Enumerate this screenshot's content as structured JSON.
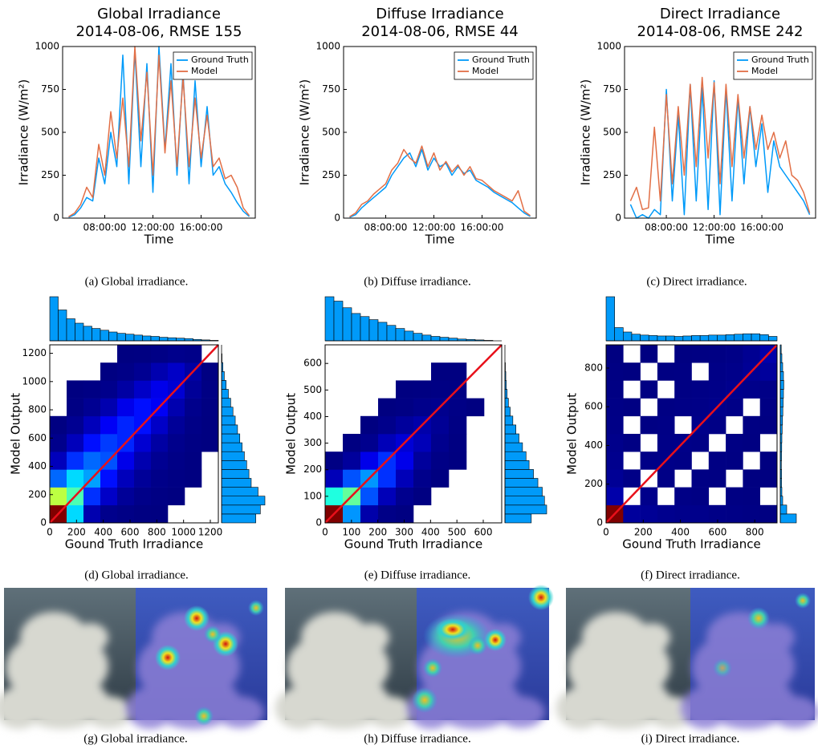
{
  "chart_data": [
    {
      "type": "line",
      "title": "Global Irradiance",
      "subtitle": "2014-08-06, RMSE 155",
      "xlabel": "Time",
      "ylabel": "Irradiance (W/m²)",
      "x": [
        5,
        5.5,
        6,
        6.5,
        7,
        7.5,
        8,
        8.5,
        9,
        9.5,
        10,
        10.5,
        11,
        11.5,
        12,
        12.5,
        13,
        13.5,
        14,
        14.5,
        15,
        15.5,
        16,
        16.5,
        17,
        17.5,
        18,
        18.5,
        19,
        19.5,
        20
      ],
      "series": [
        {
          "name": "Ground Truth",
          "color": "#009af9",
          "values": [
            5,
            20,
            60,
            120,
            100,
            350,
            200,
            500,
            300,
            950,
            200,
            980,
            300,
            900,
            150,
            1000,
            400,
            900,
            250,
            850,
            200,
            800,
            300,
            650,
            250,
            300,
            200,
            150,
            90,
            40,
            10
          ]
        },
        {
          "name": "Model",
          "color": "#e26f46",
          "values": [
            8,
            30,
            80,
            180,
            120,
            430,
            250,
            620,
            350,
            700,
            300,
            1000,
            450,
            850,
            250,
            950,
            380,
            800,
            300,
            820,
            300,
            700,
            350,
            600,
            300,
            350,
            230,
            250,
            180,
            60,
            15
          ]
        }
      ],
      "xlim": [
        4.5,
        20.5
      ],
      "xticks": [
        {
          "value": 8,
          "label": "08:00:00"
        },
        {
          "value": 12,
          "label": "12:00:00"
        },
        {
          "value": 16,
          "label": "16:00:00"
        }
      ],
      "ylim": [
        0,
        1000
      ],
      "yticks": [
        0,
        250,
        500,
        750,
        1000
      ],
      "legend": "upper right",
      "caption": "(a) Global irradiance."
    },
    {
      "type": "line",
      "title": "Diffuse Irradiance",
      "subtitle": "2014-08-06, RMSE 44",
      "xlabel": "Time",
      "ylabel": "Irradiance (W/m²)",
      "x": [
        5,
        5.5,
        6,
        6.5,
        7,
        7.5,
        8,
        8.5,
        9,
        9.5,
        10,
        10.5,
        11,
        11.5,
        12,
        12.5,
        13,
        13.5,
        14,
        14.5,
        15,
        15.5,
        16,
        16.5,
        17,
        17.5,
        18,
        18.5,
        19,
        19.5,
        20
      ],
      "series": [
        {
          "name": "Ground Truth",
          "color": "#009af9",
          "values": [
            5,
            20,
            60,
            90,
            120,
            150,
            180,
            250,
            300,
            350,
            380,
            300,
            400,
            280,
            350,
            300,
            320,
            250,
            300,
            260,
            280,
            220,
            200,
            180,
            150,
            130,
            110,
            90,
            60,
            30,
            10
          ]
        },
        {
          "name": "Model",
          "color": "#e26f46",
          "values": [
            8,
            30,
            80,
            100,
            140,
            170,
            200,
            280,
            320,
            400,
            350,
            320,
            420,
            300,
            380,
            280,
            330,
            270,
            310,
            250,
            300,
            230,
            220,
            190,
            160,
            140,
            120,
            100,
            160,
            40,
            15
          ]
        }
      ],
      "xlim": [
        4.5,
        20.5
      ],
      "xticks": [
        {
          "value": 8,
          "label": "08:00:00"
        },
        {
          "value": 12,
          "label": "12:00:00"
        },
        {
          "value": 16,
          "label": "16:00:00"
        }
      ],
      "ylim": [
        0,
        1000
      ],
      "yticks": [
        0,
        250,
        500,
        750,
        1000
      ],
      "legend": "upper right",
      "caption": "(b) Diffuse irradiance."
    },
    {
      "type": "line",
      "title": "Direct Irradiance",
      "subtitle": "2014-08-06, RMSE 242",
      "xlabel": "Time",
      "ylabel": "Irradiance (W/m²)",
      "x": [
        5,
        5.5,
        6,
        6.5,
        7,
        7.5,
        8,
        8.5,
        9,
        9.5,
        10,
        10.5,
        11,
        11.5,
        12,
        12.5,
        13,
        13.5,
        14,
        14.5,
        15,
        15.5,
        16,
        16.5,
        17,
        17.5,
        18,
        18.5,
        19,
        19.5,
        20
      ],
      "series": [
        {
          "name": "Ground Truth",
          "color": "#009af9",
          "values": [
            80,
            0,
            20,
            0,
            50,
            20,
            750,
            100,
            600,
            20,
            780,
            100,
            760,
            50,
            800,
            20,
            750,
            100,
            700,
            200,
            650,
            300,
            550,
            150,
            450,
            300,
            250,
            200,
            150,
            100,
            20
          ]
        },
        {
          "name": "Model",
          "color": "#e26f46",
          "values": [
            100,
            180,
            50,
            60,
            530,
            100,
            720,
            200,
            650,
            250,
            780,
            300,
            820,
            350,
            790,
            200,
            780,
            300,
            720,
            350,
            650,
            400,
            600,
            400,
            500,
            350,
            450,
            250,
            220,
            150,
            30
          ]
        }
      ],
      "xlim": [
        4.5,
        20.5
      ],
      "xticks": [
        {
          "value": 8,
          "label": "08:00:00"
        },
        {
          "value": 12,
          "label": "12:00:00"
        },
        {
          "value": 16,
          "label": "16:00:00"
        }
      ],
      "ylim": [
        0,
        1000
      ],
      "yticks": [
        0,
        250,
        500,
        750,
        1000
      ],
      "legend": "upper right",
      "caption": "(c) Direct irradiance."
    },
    {
      "type": "heatmap",
      "xlabel": "Gound Truth Irradiance",
      "ylabel": "Model Output",
      "colormap": "jet",
      "diagonal": true,
      "diagonal_color": "#e8101a",
      "xlim": [
        0,
        1260
      ],
      "ylim": [
        0,
        1260
      ],
      "xticks": [
        0,
        200,
        400,
        600,
        800,
        1000,
        1200
      ],
      "yticks": [
        0,
        200,
        400,
        600,
        800,
        1000,
        1200
      ],
      "z": [
        [
          900,
          300,
          40,
          10,
          5,
          2,
          1,
          0,
          0,
          0
        ],
        [
          500,
          400,
          150,
          60,
          20,
          8,
          3,
          1,
          0,
          0
        ],
        [
          200,
          300,
          250,
          120,
          50,
          20,
          8,
          3,
          1,
          0
        ],
        [
          50,
          150,
          200,
          180,
          90,
          40,
          15,
          6,
          2,
          0
        ],
        [
          10,
          50,
          120,
          160,
          140,
          70,
          30,
          10,
          3,
          1
        ],
        [
          2,
          15,
          50,
          100,
          140,
          120,
          60,
          20,
          6,
          1
        ],
        [
          0,
          3,
          15,
          40,
          90,
          120,
          100,
          40,
          10,
          2
        ],
        [
          0,
          1,
          3,
          10,
          30,
          60,
          90,
          70,
          20,
          3
        ],
        [
          0,
          0,
          0,
          2,
          6,
          15,
          40,
          60,
          30,
          2
        ],
        [
          0,
          0,
          0,
          0,
          1,
          2,
          5,
          10,
          8,
          0
        ]
      ],
      "marginal_color": "#009af9",
      "marginal_bins": [
        0,
        63,
        126,
        189,
        252,
        315,
        378,
        441,
        504,
        567,
        630,
        693,
        756,
        819,
        882,
        945,
        1008,
        1071,
        1134,
        1197,
        1260
      ],
      "x_marginal_counts": [
        100,
        70,
        50,
        40,
        33,
        28,
        24,
        20,
        17,
        15,
        13,
        11,
        10,
        8,
        7,
        6,
        5,
        3,
        2,
        1
      ],
      "y_marginal_counts": [
        75,
        85,
        95,
        80,
        65,
        60,
        55,
        50,
        45,
        40,
        35,
        30,
        25,
        20,
        15,
        10,
        6,
        3,
        1,
        0
      ],
      "caption": "(d) Global irradiance."
    },
    {
      "type": "heatmap",
      "xlabel": "Gound Truth Irradiance",
      "ylabel": "Model Output",
      "colormap": "jet",
      "diagonal": true,
      "diagonal_color": "#e8101a",
      "xlim": [
        0,
        670
      ],
      "ylim": [
        0,
        670
      ],
      "xticks": [
        0,
        100,
        200,
        300,
        400,
        500,
        600
      ],
      "yticks": [
        0,
        100,
        200,
        300,
        400,
        500,
        600
      ],
      "z": [
        [
          1500,
          400,
          60,
          10,
          3,
          0,
          0,
          0,
          0,
          0
        ],
        [
          600,
          700,
          300,
          80,
          20,
          3,
          0,
          0,
          0,
          0
        ],
        [
          80,
          300,
          400,
          250,
          80,
          15,
          2,
          0,
          0,
          0
        ],
        [
          5,
          40,
          150,
          250,
          150,
          40,
          8,
          1,
          0,
          0
        ],
        [
          0,
          3,
          20,
          80,
          120,
          80,
          20,
          3,
          0,
          0
        ],
        [
          0,
          0,
          2,
          15,
          40,
          60,
          30,
          6,
          0,
          0
        ],
        [
          0,
          0,
          0,
          1,
          6,
          15,
          20,
          8,
          1,
          0
        ],
        [
          0,
          0,
          0,
          0,
          1,
          3,
          6,
          4,
          0,
          0
        ],
        [
          0,
          0,
          0,
          0,
          0,
          0,
          1,
          1,
          0,
          0
        ],
        [
          0,
          0,
          0,
          0,
          0,
          0,
          0,
          0,
          0,
          0
        ]
      ],
      "marginal_color": "#009af9",
      "marginal_bins": [
        0,
        33.5,
        67,
        100.5,
        134,
        167.5,
        201,
        234.5,
        268,
        301.5,
        335,
        368.5,
        402,
        435.5,
        469,
        502.5,
        536,
        569.5,
        603,
        636.5,
        670
      ],
      "x_marginal_counts": [
        100,
        90,
        75,
        62,
        55,
        48,
        42,
        35,
        28,
        22,
        17,
        13,
        10,
        8,
        6,
        4,
        3,
        2,
        1,
        0
      ],
      "y_marginal_counts": [
        60,
        95,
        90,
        85,
        75,
        65,
        55,
        48,
        40,
        32,
        25,
        18,
        12,
        8,
        5,
        3,
        2,
        1,
        0,
        0
      ],
      "caption": "(e) Diffuse irradiance."
    },
    {
      "type": "heatmap",
      "xlabel": "Gound Truth Irradiance",
      "ylabel": "Model Output",
      "colormap": "jet",
      "diagonal": true,
      "diagonal_color": "#e8101a",
      "xlim": [
        0,
        920
      ],
      "ylim": [
        0,
        920
      ],
      "xticks": [
        0,
        200,
        400,
        600,
        800
      ],
      "yticks": [
        0,
        200,
        400,
        600,
        800
      ],
      "z": [
        [
          1500,
          40,
          30,
          20,
          15,
          15,
          10,
          8,
          5,
          3
        ],
        [
          60,
          0,
          15,
          0,
          8,
          6,
          0,
          4,
          3,
          0
        ],
        [
          30,
          10,
          0,
          8,
          0,
          5,
          4,
          0,
          2,
          1
        ],
        [
          20,
          0,
          10,
          12,
          8,
          0,
          5,
          4,
          0,
          2
        ],
        [
          15,
          6,
          0,
          10,
          12,
          8,
          0,
          5,
          3,
          0
        ],
        [
          10,
          0,
          6,
          8,
          0,
          14,
          8,
          0,
          4,
          3
        ],
        [
          8,
          4,
          0,
          6,
          8,
          10,
          16,
          10,
          0,
          5
        ],
        [
          6,
          0,
          4,
          0,
          6,
          8,
          12,
          18,
          14,
          10
        ],
        [
          4,
          2,
          0,
          4,
          5,
          0,
          10,
          14,
          30,
          40
        ],
        [
          2,
          0,
          2,
          0,
          3,
          4,
          6,
          10,
          25,
          60
        ]
      ],
      "marginal_color": "#009af9",
      "marginal_bins": [
        0,
        46,
        92,
        138,
        184,
        230,
        276,
        322,
        368,
        414,
        460,
        506,
        552,
        598,
        644,
        690,
        736,
        782,
        828,
        874,
        920
      ],
      "x_marginal_counts": [
        100,
        30,
        20,
        15,
        13,
        12,
        11,
        11,
        10,
        11,
        12,
        12,
        13,
        13,
        14,
        15,
        16,
        16,
        14,
        10
      ],
      "y_marginal_counts": [
        100,
        40,
        15,
        10,
        8,
        8,
        7,
        8,
        9,
        10,
        12,
        14,
        16,
        18,
        20,
        22,
        20,
        15,
        10,
        6
      ],
      "caption": "(f) Direct irradiance."
    }
  ],
  "image_captions": [
    "(g) Global irradiance.",
    "(h) Diffuse irradiance.",
    "(i) Direct irradiance."
  ]
}
